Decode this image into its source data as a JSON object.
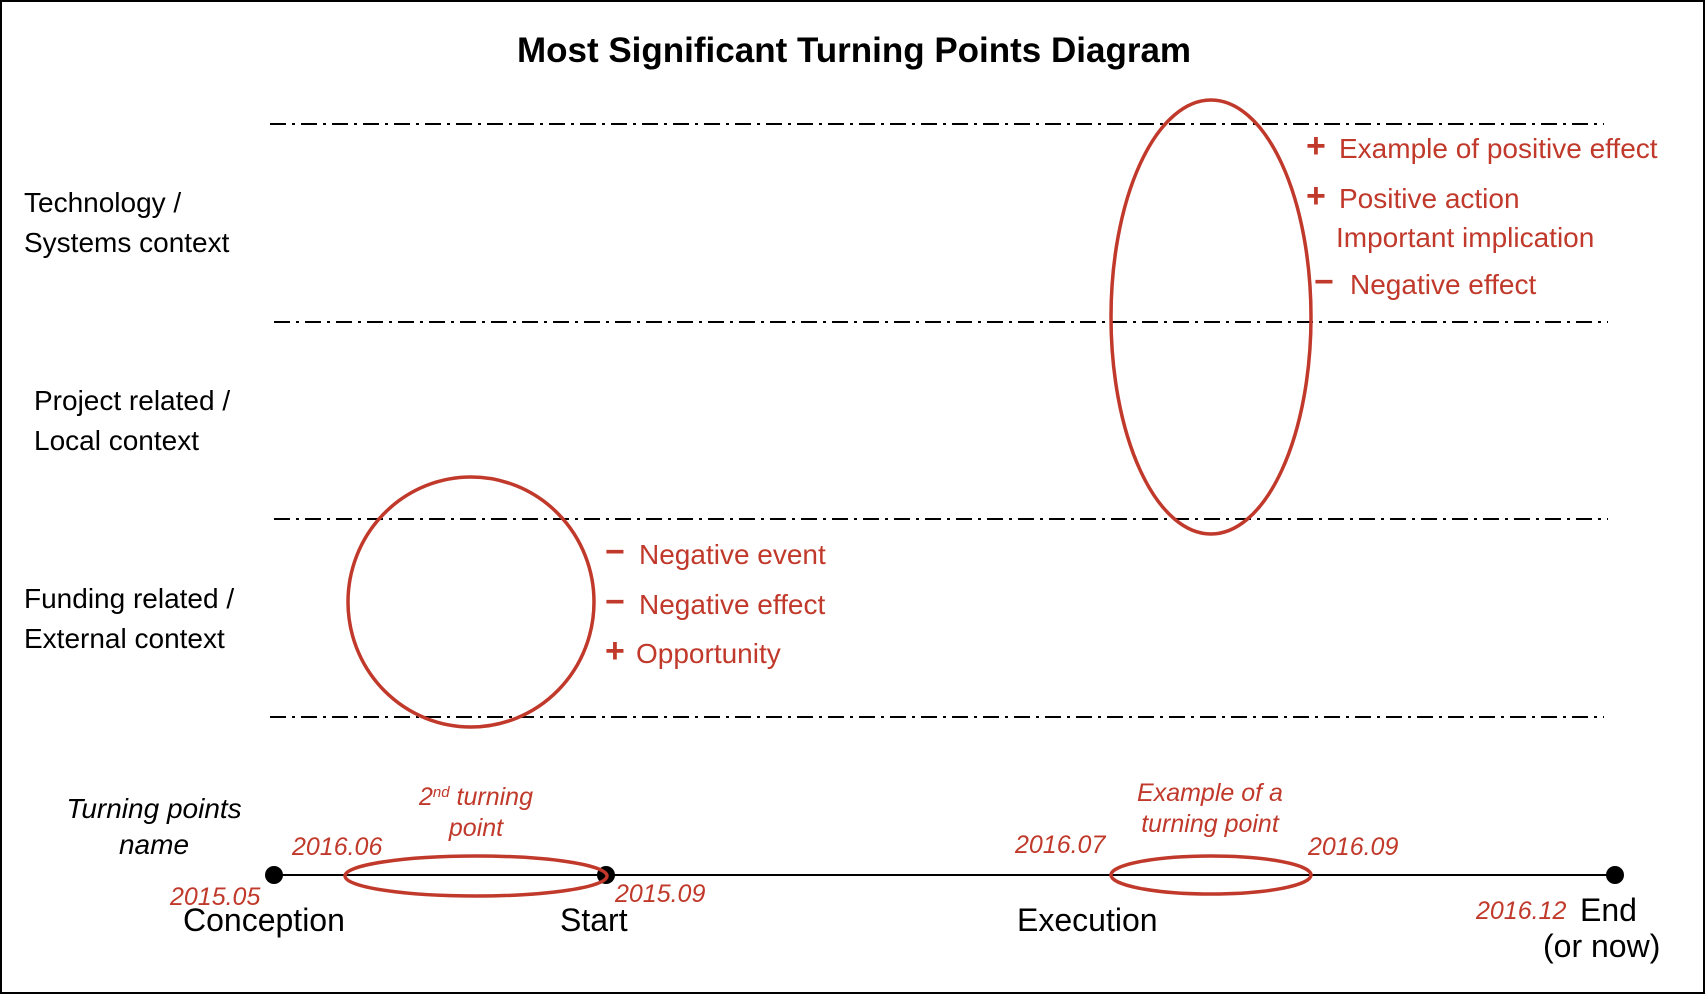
{
  "title": "Most Significant Turning Points Diagram",
  "contexts": [
    {
      "line1": "Technology /",
      "line2": "Systems context"
    },
    {
      "line1": "Project related /",
      "line2": "Local context"
    },
    {
      "line1": "Funding related /",
      "line2": "External context"
    }
  ],
  "upper_effects": [
    {
      "sign": "+",
      "text": "Example of positive effect"
    },
    {
      "sign": "+",
      "text": "Positive action"
    },
    {
      "sign": "",
      "text": "Important implication"
    },
    {
      "sign": "−",
      "text": "Negative effect"
    }
  ],
  "lower_effects": [
    {
      "sign": "−",
      "text": "Negative event"
    },
    {
      "sign": "−",
      "text": "Negative effect"
    },
    {
      "sign": "+",
      "text": "Opportunity"
    }
  ],
  "turning_points_name": {
    "line1": "Turning points",
    "line2": "name"
  },
  "turning_point_1": {
    "line1": "Example of a",
    "line2": "turning point"
  },
  "turning_point_2": {
    "prefix": "2",
    "sup": "nd",
    "suffix": " turning",
    "line2": "point"
  },
  "dates": {
    "conception": "2015.05",
    "tp2_start": "2016.06",
    "start": "2015.09",
    "tp1_start": "2016.07",
    "tp1_end": "2016.09",
    "end": "2016.12"
  },
  "phases": {
    "conception": "Conception",
    "start": "Start",
    "execution": "Execution",
    "end": "End",
    "end_note": "(or now)"
  },
  "colors": {
    "accent": "#c0392b",
    "ink": "#000000"
  }
}
